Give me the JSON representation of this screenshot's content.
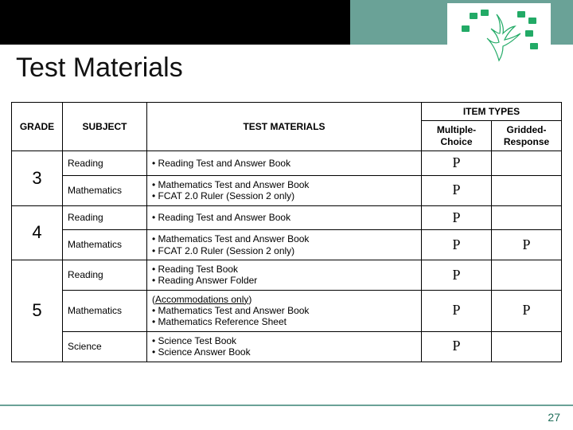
{
  "title": "Test Materials",
  "page_number": "27",
  "colors": {
    "band": "#6aa297",
    "dark": "#000000",
    "pagenum": "#1f6e5a",
    "ink": "#111111",
    "border": "#000000"
  },
  "checkmark_glyph": "P",
  "table": {
    "headers": {
      "grade": "GRADE",
      "subject": "SUBJECT",
      "test_materials": "TEST MATERIALS",
      "item_types": "ITEM TYPES",
      "mc": "Multiple-Choice",
      "gr": "Gridded-Response"
    },
    "rows": [
      {
        "grade": "3",
        "subject": "Reading",
        "materials": [
          "Reading Test and Answer Book"
        ],
        "mc": true,
        "gr": false,
        "rowspan": 2
      },
      {
        "grade": "",
        "subject": "Mathematics",
        "materials": [
          "Mathematics Test and Answer Book",
          "FCAT 2.0 Ruler (Session 2 only)"
        ],
        "mc": true,
        "gr": false
      },
      {
        "grade": "4",
        "subject": "Reading",
        "materials": [
          "Reading Test and Answer Book"
        ],
        "mc": true,
        "gr": false,
        "rowspan": 2
      },
      {
        "grade": "",
        "subject": "Mathematics",
        "materials": [
          "Mathematics Test and Answer Book",
          "FCAT 2.0 Ruler (Session 2 only)"
        ],
        "mc": true,
        "gr": true
      },
      {
        "grade": "5",
        "subject": "Reading",
        "materials": [
          "Reading Test Book",
          "Reading Answer Folder"
        ],
        "mc": true,
        "gr": false,
        "rowspan": 3
      },
      {
        "grade": "",
        "subject": "Mathematics",
        "materials_pre": "(Accommodations only)",
        "materials": [
          "Mathematics Test and Answer Book",
          "Mathematics Reference Sheet"
        ],
        "mc": true,
        "gr": true
      },
      {
        "grade": "",
        "subject": "Science",
        "materials": [
          "Science Test Book",
          "Science Answer Book"
        ],
        "mc": true,
        "gr": false
      }
    ]
  }
}
